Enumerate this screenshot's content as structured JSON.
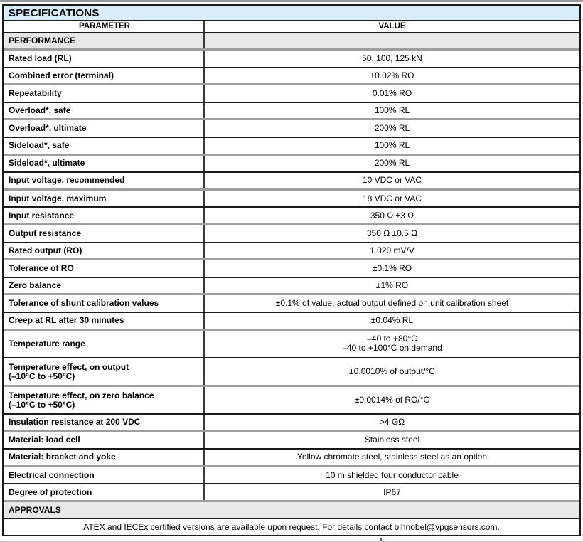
{
  "document": {
    "title": "SPECIFICATIONS",
    "columns": {
      "parameter": "PARAMETER",
      "value": "VALUE"
    },
    "sections": {
      "performance": "PERFORMANCE",
      "approvals": "APPROVALS"
    },
    "rows": [
      {
        "parameter": "Rated load (RL)",
        "value": "50, 100, 125 kN"
      },
      {
        "parameter": "Combined error (terminal)",
        "value": "±0.02% RO"
      },
      {
        "parameter": "Repeatability",
        "value": "0.01% RO"
      },
      {
        "parameter": "Overload*, safe",
        "value": "100% RL"
      },
      {
        "parameter": "Overload*, ultimate",
        "value": "200% RL"
      },
      {
        "parameter": "Sideload*, safe",
        "value": "100% RL"
      },
      {
        "parameter": "Sideload*, ultimate",
        "value": "200% RL"
      },
      {
        "parameter": "Input voltage, recommended",
        "value": "10 VDC or VAC"
      },
      {
        "parameter": "Input voltage, maximum",
        "value": "18 VDC or VAC"
      },
      {
        "parameter": "Input resistance",
        "value": "350 Ω ±3 Ω"
      },
      {
        "parameter": "Output resistance",
        "value": "350 Ω ±0.5 Ω"
      },
      {
        "parameter": "Rated output (RO)",
        "value": "1.020 mV/V"
      },
      {
        "parameter": "Tolerance of RO",
        "value": "±0.1% RO"
      },
      {
        "parameter": "Zero balance",
        "value": "±1% RO"
      },
      {
        "parameter": "Tolerance of shunt calibration values",
        "value": "±0.1% of value; actual output defined on unit calibration sheet"
      },
      {
        "parameter": "Creep at RL after 30 minutes",
        "value": "±0.04% RL"
      },
      {
        "parameter": "Temperature range",
        "value": "–40 to +80°C",
        "value2": "–40 to +100°C on demand"
      },
      {
        "parameter": "Temperature effect, on output",
        "parameter2": "(–10°C to +50°C)",
        "value": "±0.0010% of output/°C"
      },
      {
        "parameter": "Temperature effect, on zero balance",
        "parameter2": "(–10°C to +50°C)",
        "value": "±0.0014% of RO/°C"
      },
      {
        "parameter": "Insulation resistance at 200 VDC",
        "value": ">4 GΩ"
      },
      {
        "parameter": "Material: load cell",
        "value": "Stainless steel"
      },
      {
        "parameter": "Material: bracket and yoke",
        "value": "Yellow chromate steel, stainless steel as an option"
      },
      {
        "parameter": "Electrical connection",
        "value": "10 m shielded four conductor cable"
      },
      {
        "parameter": "Degree of protection",
        "value": "IP67"
      }
    ],
    "approvals_note": "ATEX and IECEx certified versions are available upon request. For details contact blhnobel@vpgsensors.com."
  },
  "colors": {
    "title_bg": "#d9ecf9",
    "section_bg": "#e8e8e8",
    "black_rule": "#1a1a1a",
    "gray_rule": "#9e9e9e"
  }
}
